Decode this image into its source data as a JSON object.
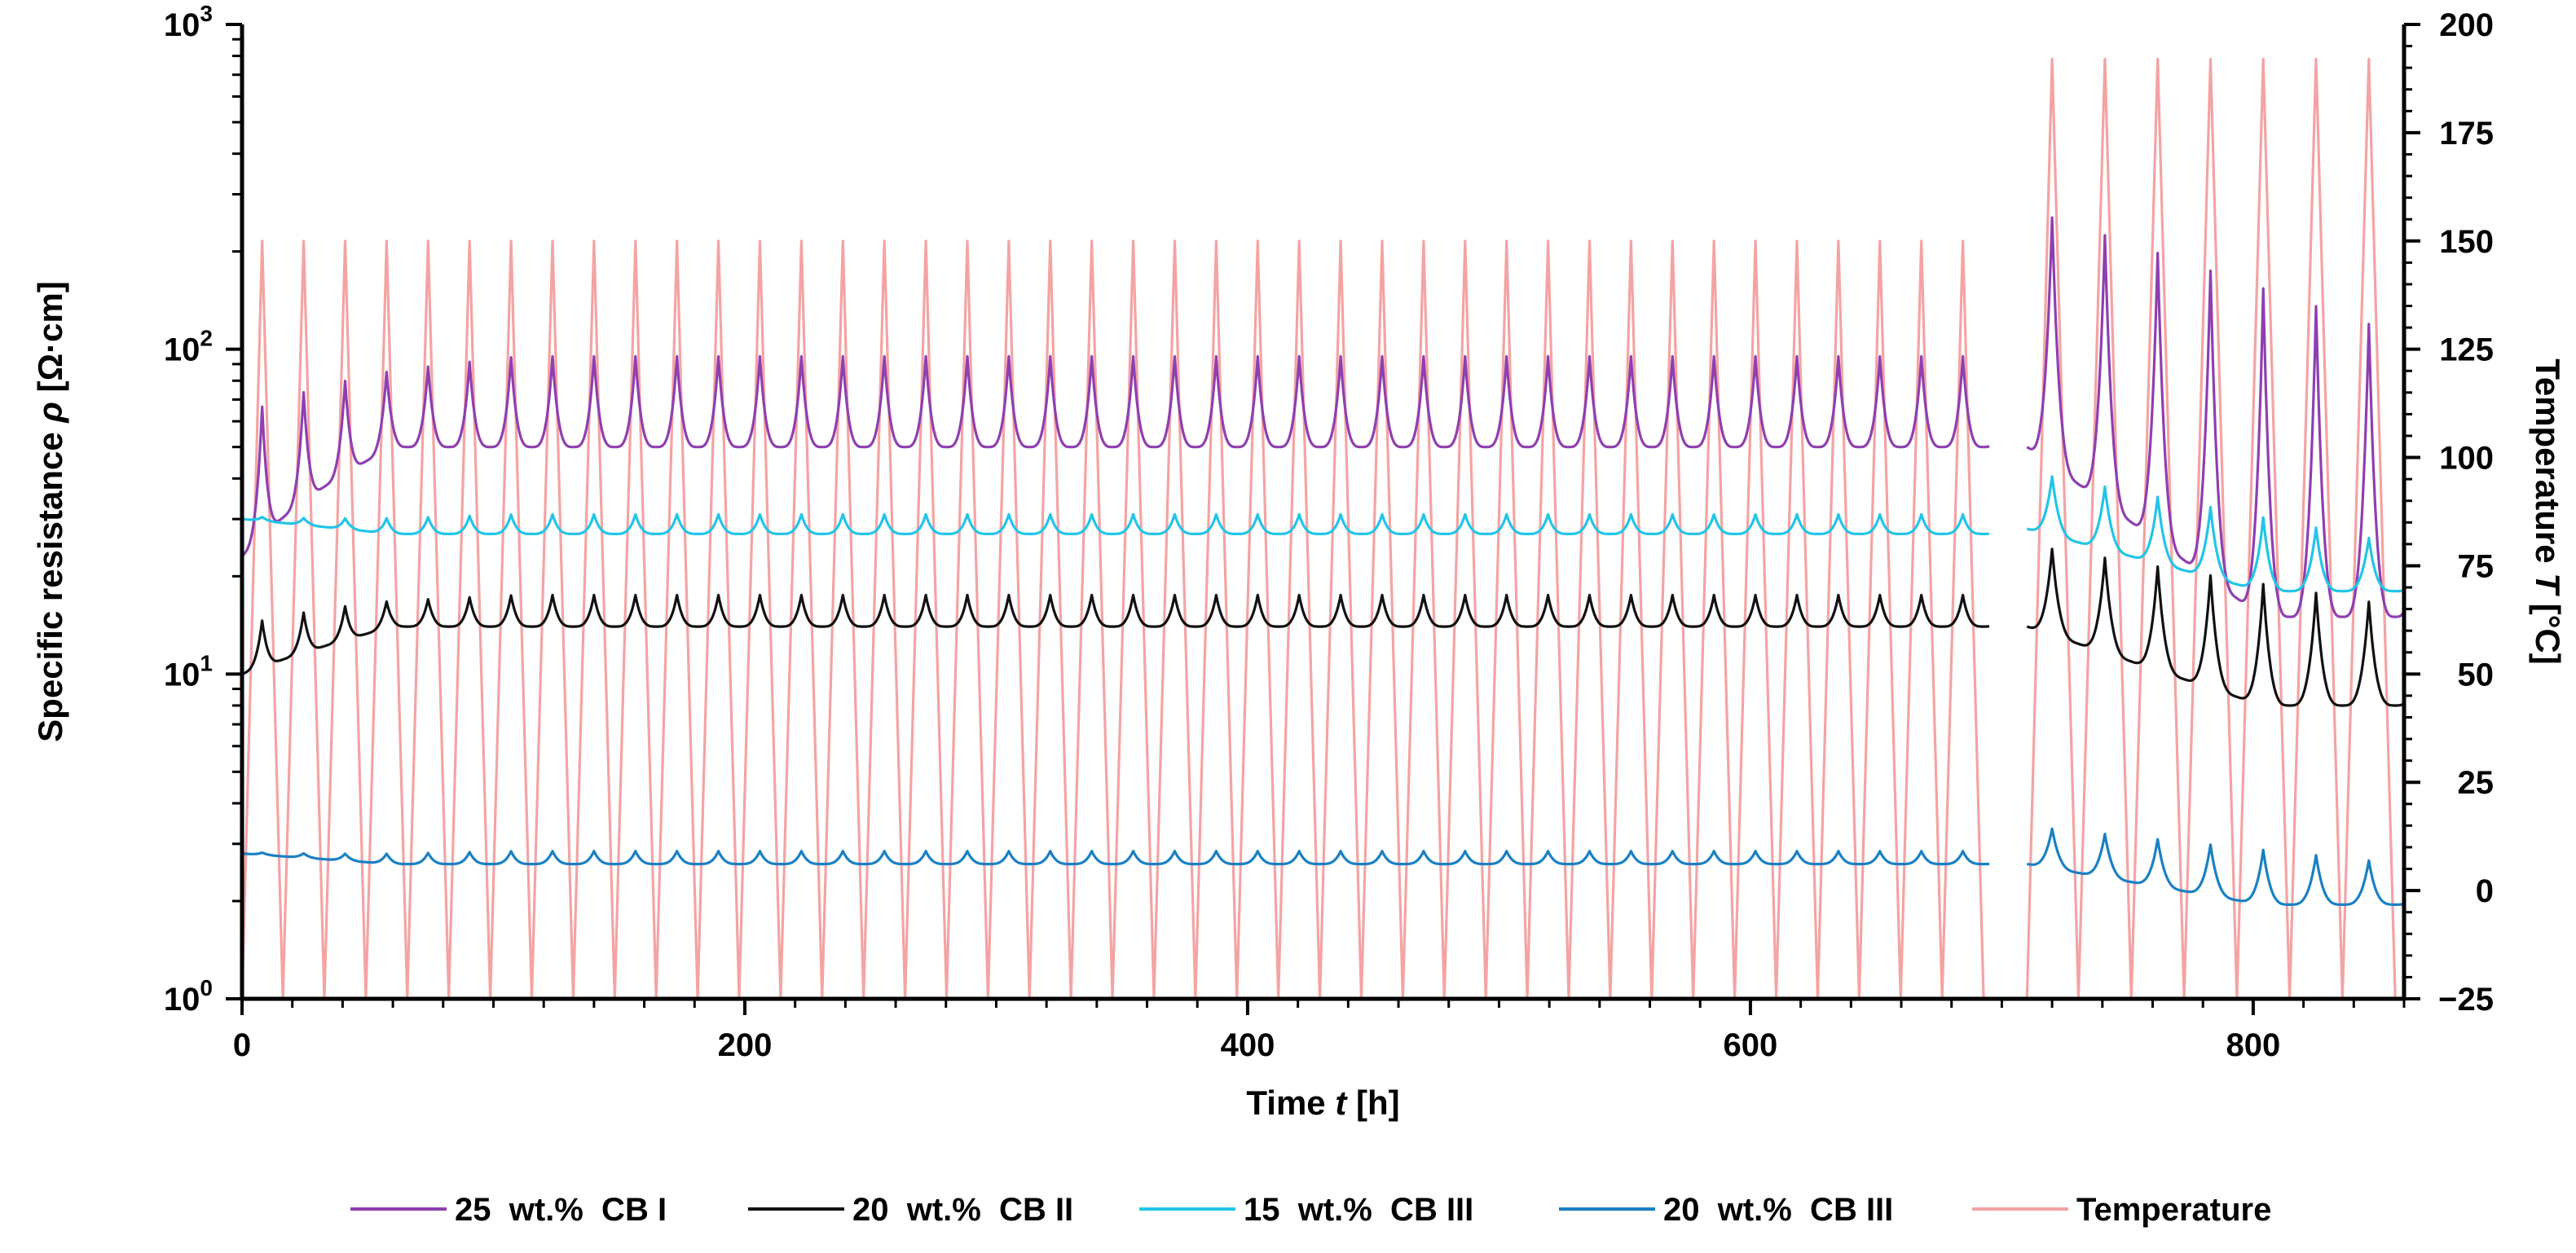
{
  "chart_data": {
    "type": "line",
    "title": "",
    "xlabel": {
      "prefix": "Time ",
      "symbol": "t",
      "suffix": " [h]"
    },
    "ylabel_left": {
      "prefix": "Specific resistance ",
      "symbol": "ρ",
      "suffix": " [Ω·cm]"
    },
    "ylabel_right": {
      "prefix": "Temperature ",
      "symbol": "T",
      "suffix": " [°C]"
    },
    "xlim": [
      0,
      860
    ],
    "ylim_left": [
      1,
      1000
    ],
    "yscale_left": "log",
    "ylim_right": [
      -25,
      200
    ],
    "x_ticks": [
      "0",
      "200",
      "400",
      "600",
      "800"
    ],
    "y_left_ticks": [
      {
        "base": "10",
        "exp": "0"
      },
      {
        "base": "10",
        "exp": "1"
      },
      {
        "base": "10",
        "exp": "2"
      },
      {
        "base": "10",
        "exp": "3"
      }
    ],
    "y_right_ticks": [
      "−25",
      "0",
      "25",
      "50",
      "75",
      "100",
      "125",
      "150",
      "175",
      "200"
    ],
    "gap": [
      695,
      710
    ],
    "legend_position": "bottom",
    "segments": [
      {
        "t_start": 0,
        "t_end": 695,
        "period": 16.5,
        "peak_offset": 8,
        "t_min": -25,
        "t_max": 150
      },
      {
        "t_start": 710,
        "t_end": 860,
        "period": 21,
        "peak_offset": 10,
        "t_min": -25,
        "t_max": 192
      }
    ],
    "series": [
      {
        "name": "25  wt.%  CB I",
        "axis": "left",
        "color": "#8e3fb0",
        "seg1": {
          "start_base": 23,
          "base_end": 50,
          "peak": 95
        },
        "seg2": {
          "base_start": 50,
          "base_end": 15,
          "peak_start": 270,
          "peak_end": 110
        }
      },
      {
        "name": "20  wt.%  CB II",
        "axis": "left",
        "color": "#111111",
        "seg1": {
          "start_base": 10,
          "base_end": 14,
          "peak": 17.5
        },
        "seg2": {
          "base_start": 14,
          "base_end": 8,
          "peak_start": 25,
          "peak_end": 16
        }
      },
      {
        "name": "15  wt.%  CB III",
        "axis": "left",
        "color": "#22c4e8",
        "seg1": {
          "start_base": 30,
          "base_end": 27,
          "peak": 31
        },
        "seg2": {
          "base_start": 28,
          "base_end": 18,
          "peak_start": 42,
          "peak_end": 25
        }
      },
      {
        "name": "20  wt.%  CB III",
        "axis": "left",
        "color": "#1a80c4",
        "seg1": {
          "start_base": 2.8,
          "base_end": 2.6,
          "peak": 2.85
        },
        "seg2": {
          "base_start": 2.6,
          "base_end": 1.95,
          "peak_start": 3.4,
          "peak_end": 2.6
        }
      },
      {
        "name": "Temperature",
        "axis": "right",
        "color": "#f4a3a3"
      }
    ]
  }
}
